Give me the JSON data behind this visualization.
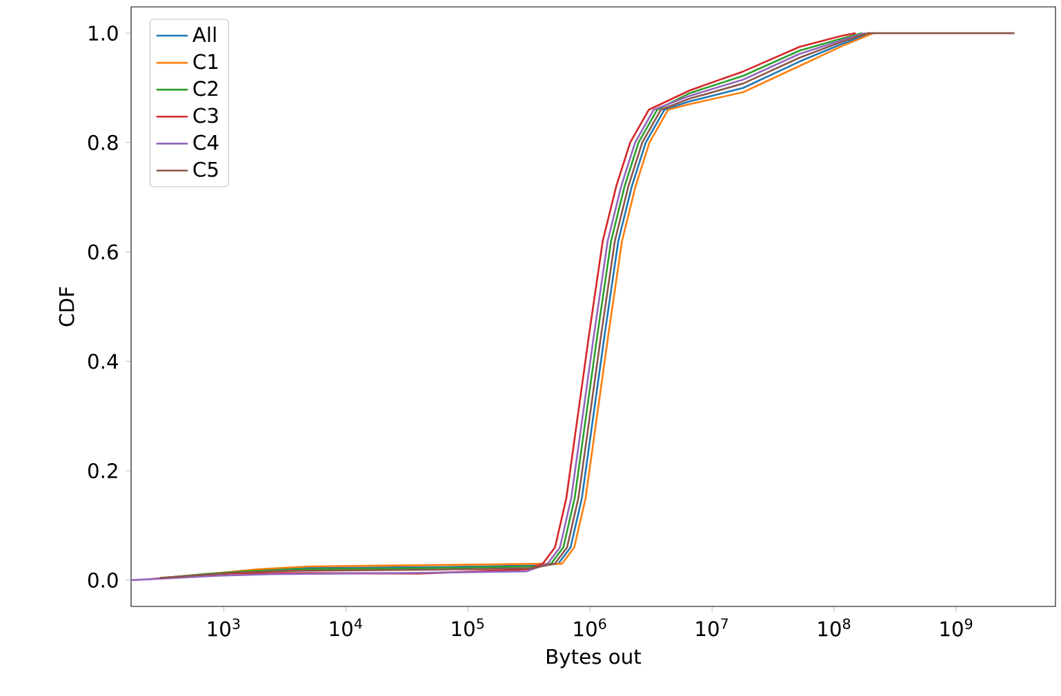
{
  "chart_data": {
    "type": "line",
    "xlabel": "Bytes out",
    "ylabel": "CDF",
    "log": "x",
    "legend": "top left",
    "xlim": [
      174,
      6500000000
    ],
    "ylim": [
      -0.048,
      1.048
    ],
    "xticks": [
      {
        "value": 1000,
        "label": "10$^{3}$"
      },
      {
        "value": 10000,
        "label": "10$^{4}$"
      },
      {
        "value": 100000,
        "label": "10$^{5}$"
      },
      {
        "value": 1000000,
        "label": "10$^{6}$"
      },
      {
        "value": 10000000,
        "label": "10$^{7}$"
      },
      {
        "value": 100000000,
        "label": "10$^{8}$"
      },
      {
        "value": 1000000000,
        "label": "10$^{9}$"
      }
    ],
    "yticks": [
      {
        "value": 0,
        "label": "0.0"
      },
      {
        "value": 0.2,
        "label": "0.2"
      },
      {
        "value": 0.4,
        "label": "0.4"
      },
      {
        "value": 0.6,
        "label": "0.6"
      },
      {
        "value": 0.8,
        "label": "0.8"
      },
      {
        "value": 1,
        "label": "1.0"
      }
    ],
    "series": [
      {
        "name": "All",
        "color": "#1f77b4",
        "x": [
          1700,
          4500,
          70000,
          380000,
          550000,
          693000,
          858000,
          1034000,
          1320000,
          1705000,
          2200000,
          2860000,
          4070000,
          6500000,
          18000000,
          52000000,
          115000000,
          200000000
        ],
        "values": [
          0.018,
          0.022,
          0.024,
          0.027,
          0.03,
          0.06,
          0.15,
          0.28,
          0.45,
          0.62,
          0.72,
          0.8,
          0.86,
          0.875,
          0.9,
          0.948,
          0.98,
          1.0
        ]
      },
      {
        "name": "C1",
        "color": "#ff7f0e",
        "x": [
          450,
          900,
          1900,
          5000,
          80000,
          400000,
          590000,
          743000,
          920000,
          1109000,
          1416000,
          1829000,
          2360000,
          3068000,
          4366000,
          6500000,
          18000000,
          52000000,
          115000000,
          210000000
        ],
        "values": [
          0.007,
          0.013,
          0.02,
          0.025,
          0.028,
          0.03,
          0.03,
          0.06,
          0.15,
          0.28,
          0.45,
          0.62,
          0.72,
          0.8,
          0.86,
          0.87,
          0.892,
          0.94,
          0.976,
          1.0
        ]
      },
      {
        "name": "C2",
        "color": "#2ca02c",
        "x": [
          350,
          700,
          1500,
          4000,
          60000,
          360000,
          480000,
          605000,
          749000,
          902000,
          1152000,
          1488000,
          1920000,
          2496000,
          3552000,
          6500000,
          18000000,
          52000000,
          115000000,
          170000000
        ],
        "values": [
          0.005,
          0.011,
          0.016,
          0.02,
          0.022,
          0.025,
          0.03,
          0.06,
          0.15,
          0.28,
          0.45,
          0.62,
          0.72,
          0.8,
          0.86,
          0.89,
          0.922,
          0.968,
          0.99,
          1.0
        ]
      },
      {
        "name": "C3",
        "color": "#d62728",
        "x": [
          250,
          500,
          1100,
          3000,
          40000,
          320000,
          410000,
          517000,
          640000,
          771000,
          984000,
          1271000,
          1640000,
          2132000,
          3034000,
          6500000,
          18000000,
          52000000,
          115000000,
          150000000
        ],
        "values": [
          0.002,
          0.007,
          0.012,
          0.013,
          0.012,
          0.02,
          0.03,
          0.06,
          0.15,
          0.28,
          0.45,
          0.62,
          0.72,
          0.8,
          0.86,
          0.895,
          0.93,
          0.975,
          0.995,
          1.0
        ]
      },
      {
        "name": "C4",
        "color": "#9467bd",
        "x": [
          175,
          400,
          900,
          2500,
          30000,
          300000,
          450000,
          567000,
          702000,
          846000,
          1080000,
          1395000,
          1800000,
          2340000,
          3330000,
          6500000,
          18000000,
          52000000,
          115000000,
          180000000
        ],
        "values": [
          0,
          0.004,
          0.008,
          0.011,
          0.013,
          0.016,
          0.03,
          0.06,
          0.15,
          0.28,
          0.45,
          0.62,
          0.72,
          0.8,
          0.86,
          0.885,
          0.915,
          0.962,
          0.987,
          1.0
        ]
      },
      {
        "name": "C5",
        "color": "#8c564b",
        "x": [
          300,
          600,
          1300,
          3500,
          50000,
          340000,
          515000,
          649000,
          803000,
          968000,
          1236000,
          1597000,
          2060000,
          2678000,
          3811000,
          6500000,
          18000000,
          52000000,
          115000000,
          190000000,
          3000000000
        ],
        "values": [
          0.004,
          0.009,
          0.014,
          0.017,
          0.019,
          0.022,
          0.03,
          0.06,
          0.15,
          0.28,
          0.45,
          0.62,
          0.72,
          0.8,
          0.86,
          0.88,
          0.908,
          0.955,
          0.984,
          1.0,
          1.0
        ]
      }
    ]
  }
}
